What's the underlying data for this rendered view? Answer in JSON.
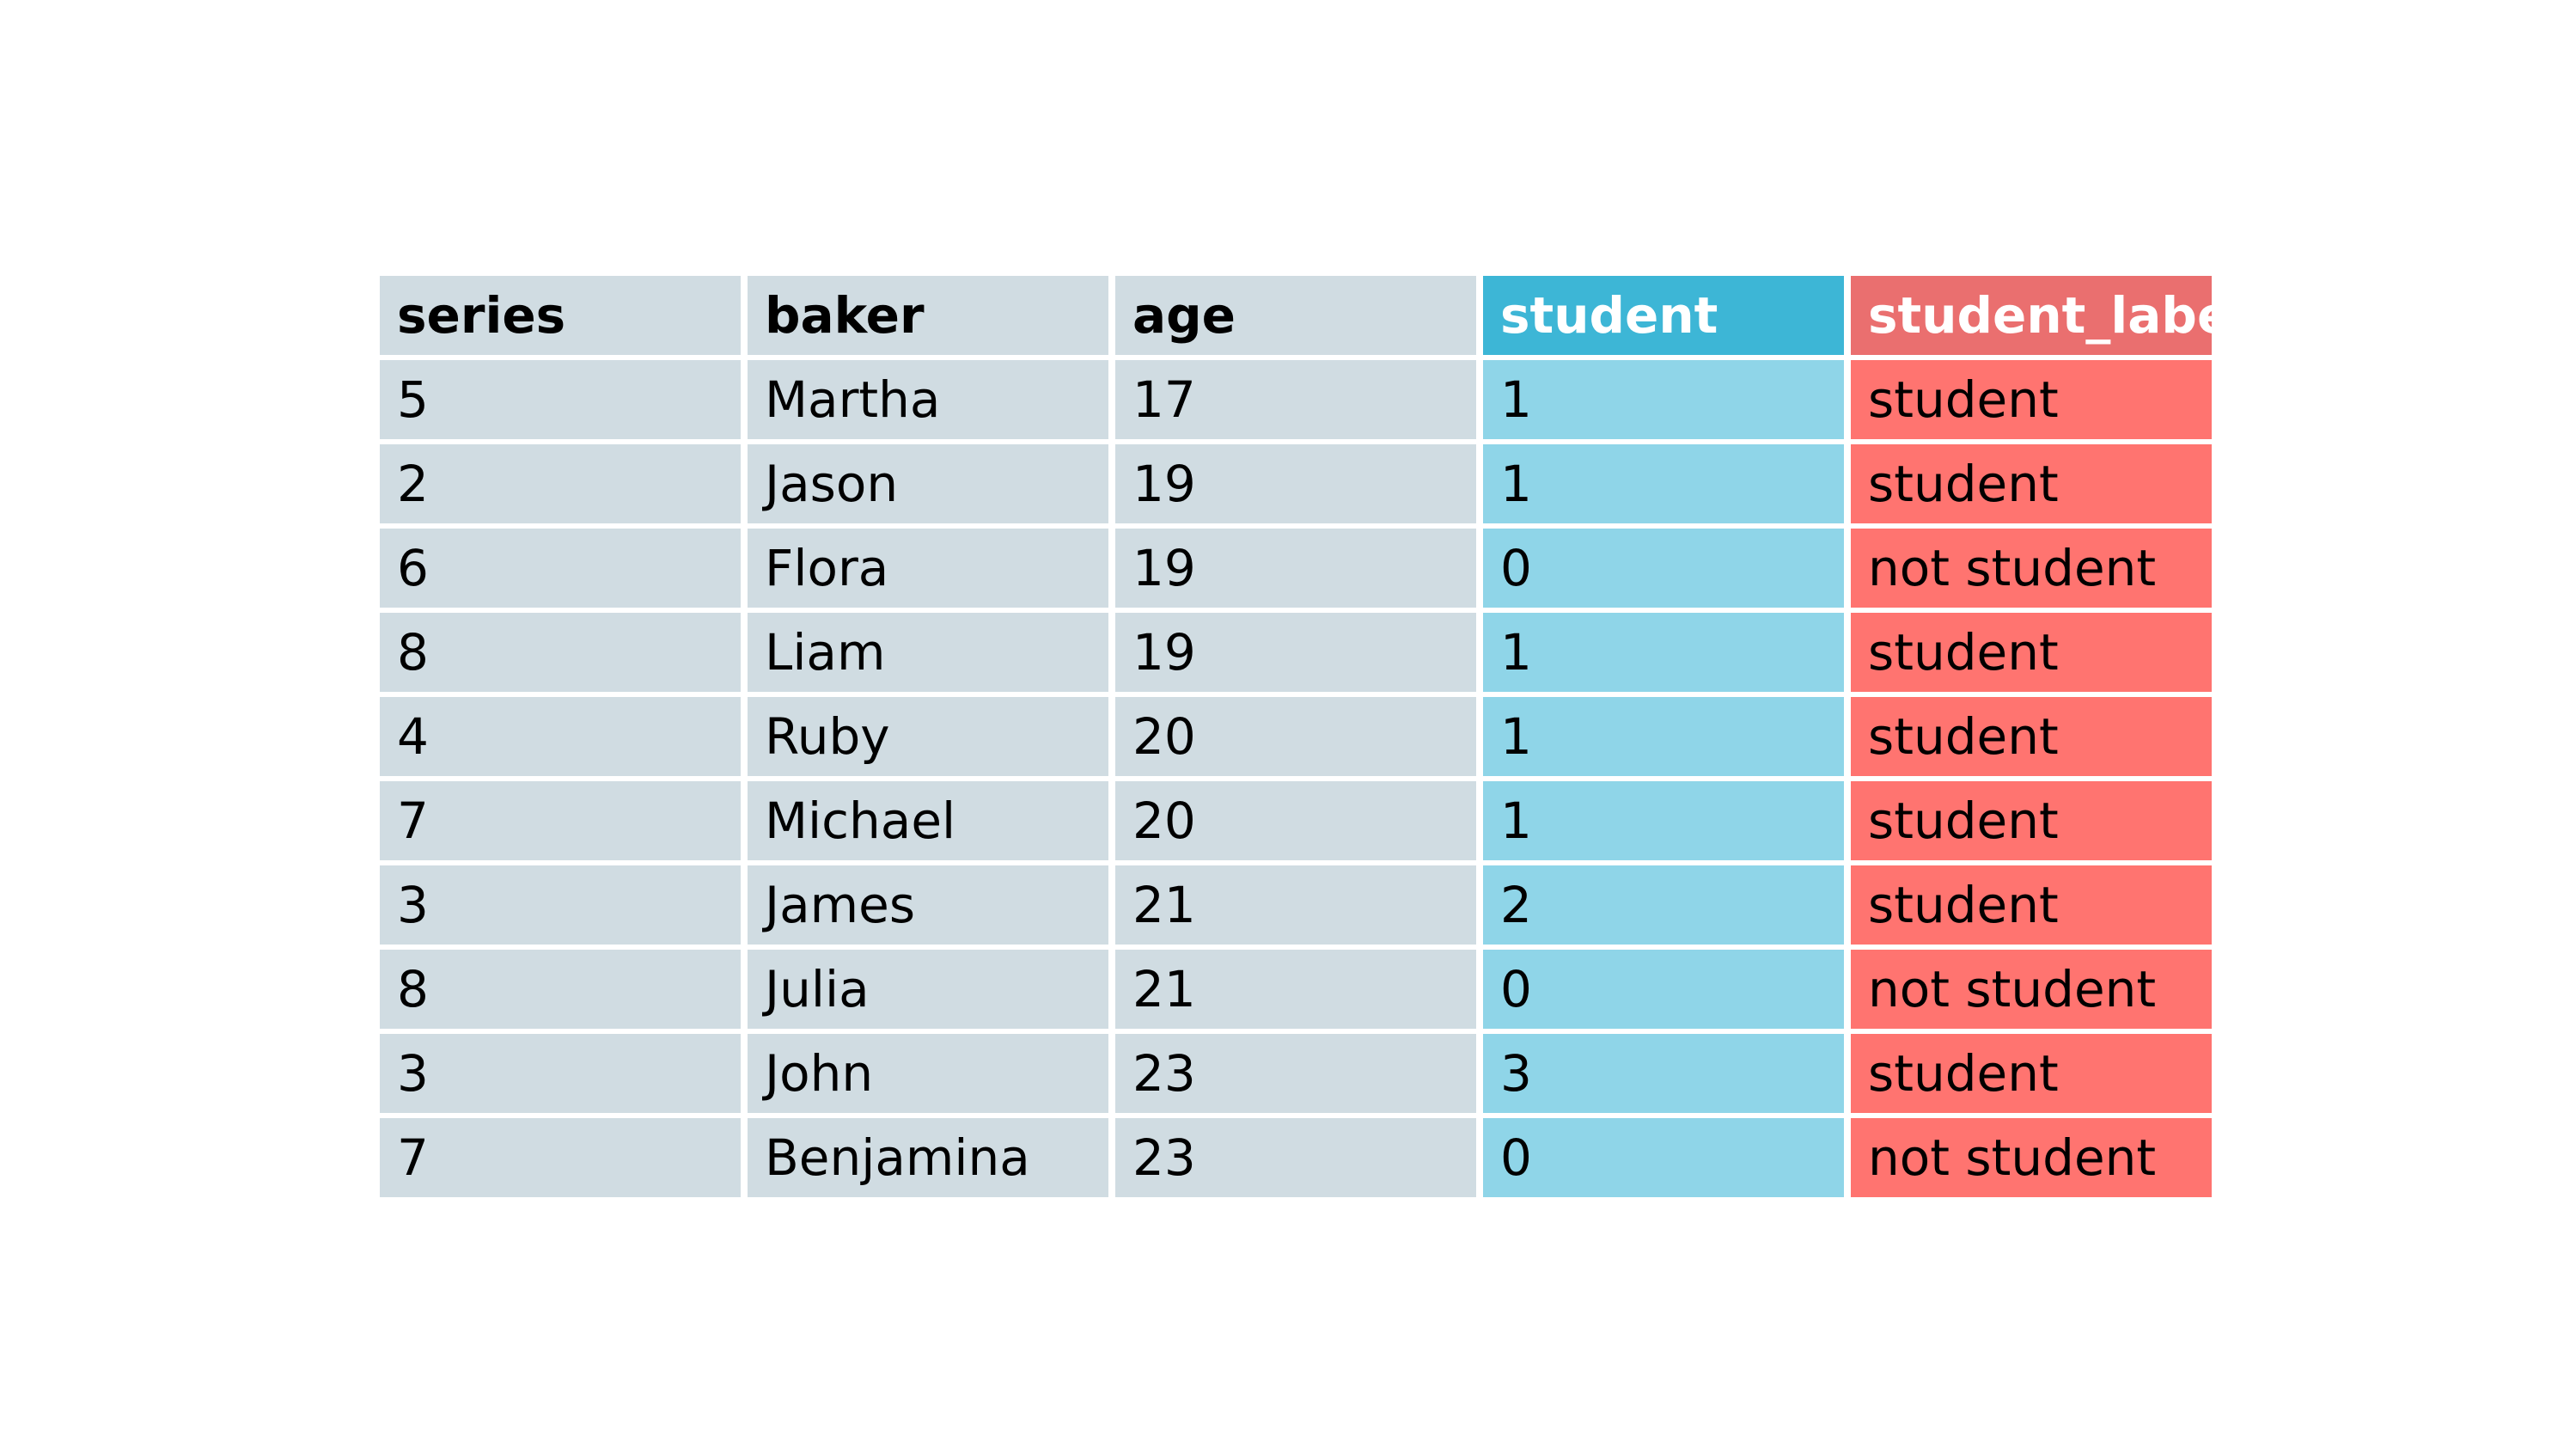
{
  "table": {
    "columns": [
      "series",
      "baker",
      "age",
      "student",
      "student_label"
    ],
    "rows": [
      [
        "5",
        "Martha",
        "17",
        "1",
        "student"
      ],
      [
        "2",
        "Jason",
        "19",
        "1",
        "student"
      ],
      [
        "6",
        "Flora",
        "19",
        "0",
        "not student"
      ],
      [
        "8",
        "Liam",
        "19",
        "1",
        "student"
      ],
      [
        "4",
        "Ruby",
        "20",
        "1",
        "student"
      ],
      [
        "7",
        "Michael",
        "20",
        "1",
        "student"
      ],
      [
        "3",
        "James",
        "21",
        "2",
        "student"
      ],
      [
        "8",
        "Julia",
        "21",
        "0",
        "not student"
      ],
      [
        "3",
        "John",
        "23",
        "3",
        "student"
      ],
      [
        "7",
        "Benjamina",
        "23",
        "0",
        "not student"
      ]
    ]
  },
  "colors": {
    "neutral_fill": "#d0dce2",
    "student_header": "#3db6d6",
    "student_cell": "#8fd5e8",
    "label_header": "#ea6f6f",
    "label_cell": "#ff7470"
  }
}
